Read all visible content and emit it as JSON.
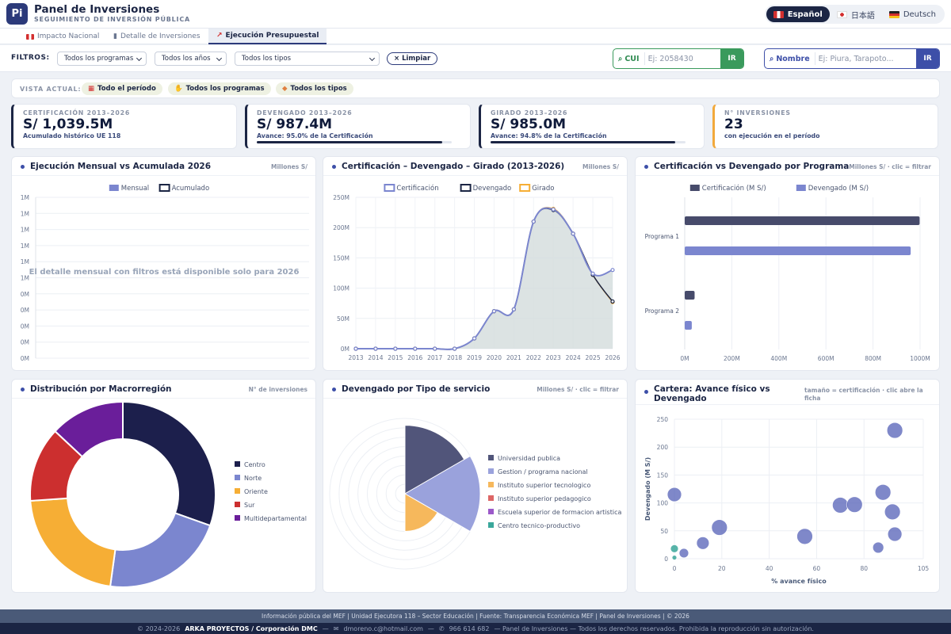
{
  "app": {
    "logo": "Pi",
    "title": "Panel de Inversiones",
    "subtitle": "SEGUIMIENTO DE INVERSIÓN PÚBLICA"
  },
  "languages": [
    {
      "label": "Español",
      "flag": "peru-flag-icon",
      "active": true
    },
    {
      "label": "日本語",
      "flag": "japan-flag-icon",
      "active": false
    },
    {
      "label": "Deutsch",
      "flag": "germany-flag-icon",
      "active": false
    }
  ],
  "tabs": [
    {
      "label": "Impacto Nacional",
      "icon": "peru-flag-icon",
      "active": false
    },
    {
      "label": "Detalle de Inversiones",
      "icon": "bar-chart-icon",
      "active": false
    },
    {
      "label": "Ejecución Presupuestal",
      "icon": "trend-chart-icon",
      "active": true
    }
  ],
  "filters": {
    "label": "FILTROS:",
    "programs": "Todos los programas",
    "years": "Todos los años",
    "types": "Todos los tipos",
    "clear": "× Limpiar"
  },
  "search_cui": {
    "label": "CUI",
    "placeholder": "Ej: 2058430",
    "button": "IR"
  },
  "search_name": {
    "label": "Nombre",
    "placeholder": "Ej: Piura, Tarapoto...",
    "button": "IR"
  },
  "current_view": {
    "label": "VISTA ACTUAL:",
    "chips": [
      "Todo el período",
      "Todos los programas",
      "Todos los tipos"
    ]
  },
  "kpis": [
    {
      "label": "CERTIFICACIÓN 2013–2026",
      "value": "S/ 1,039.5M",
      "sub": "Acumulado histórico UE 118",
      "progress": null
    },
    {
      "label": "DEVENGADO 2013–2026",
      "value": "S/ 987.4M",
      "sub": "Avance: 95.0% de la Certificación",
      "progress": 0.95
    },
    {
      "label": "GIRADO 2013–2026",
      "value": "S/ 985.0M",
      "sub": "Avance: 94.8% de la Certificación",
      "progress": 0.948
    },
    {
      "label": "N° INVERSIONES",
      "value": "23",
      "sub": "con ejecución en el período",
      "progress": null
    }
  ],
  "cards": {
    "monthly": {
      "title": "Ejecución Mensual vs Acumulada 2026",
      "note": "Millones S/",
      "message": "El detalle mensual con filtros está disponible solo para 2026"
    },
    "cert_dev": {
      "title": "Certificación – Devengado – Girado (2013-2026)",
      "note": "Millones S/"
    },
    "program": {
      "title": "Certificación vs Devengado por Programa",
      "note": "Millones S/ · clic = filtrar"
    },
    "region": {
      "title": "Distribución por Macrorregión",
      "note": "N° de inversiones"
    },
    "service": {
      "title": "Devengado por Tipo de servicio",
      "note": "Millones S/ · clic = filtrar"
    },
    "portfolio": {
      "title": "Cartera: Avance físico vs Devengado",
      "note": "tamaño = certificación · clic abre la ficha"
    }
  },
  "colors": {
    "navy": "#1b2544",
    "indigo": "#7b86cf",
    "dark_slate": "#474b6b",
    "amber": "#f6ae35",
    "green": "#3a9a5c"
  },
  "chart_data": [
    {
      "type": "bar",
      "title": "Ejecución Mensual vs Acumulada 2026",
      "legend": [
        "Mensual",
        "Acumulado"
      ],
      "legend_position": "top",
      "y_ticks": [
        "1M",
        "1M",
        "1M",
        "1M",
        "1M",
        "1M",
        "0M",
        "0M",
        "0M",
        "0M",
        "0M"
      ],
      "grid": true
    },
    {
      "type": "line",
      "title": "Certificación – Devengado – Girado (2013-2026)",
      "legend": [
        "Certificación",
        "Devengado",
        "Girado"
      ],
      "legend_position": "top",
      "x": [
        2013,
        2014,
        2015,
        2016,
        2017,
        2018,
        2019,
        2020,
        2021,
        2022,
        2023,
        2024,
        2025,
        2026
      ],
      "y_ticks": [
        "0M",
        "50M",
        "100M",
        "150M",
        "200M",
        "250M"
      ],
      "ylim": [
        0,
        250
      ],
      "series": [
        {
          "name": "Certificación",
          "values": [
            0,
            0,
            0,
            0,
            0,
            0,
            17,
            62,
            65,
            210,
            230,
            190,
            124,
            130
          ]
        },
        {
          "name": "Devengado",
          "values": [
            0,
            0,
            0,
            0,
            0,
            0,
            17,
            62,
            65,
            210,
            229,
            190,
            122,
            78
          ]
        },
        {
          "name": "Girado",
          "values": [
            0,
            0,
            0,
            0,
            0,
            0,
            17,
            62,
            65,
            210,
            231,
            190,
            122,
            77
          ]
        }
      ],
      "grid": true
    },
    {
      "type": "bar",
      "orientation": "horizontal",
      "title": "Certificación vs Devengado por Programa",
      "legend": [
        "Certificación (M S/)",
        "Devengado (M S/)"
      ],
      "legend_position": "top",
      "categories": [
        "Programa 1",
        "Programa 2"
      ],
      "x_ticks": [
        "0M",
        "200M",
        "400M",
        "600M",
        "800M",
        "1000M"
      ],
      "xlim": [
        0,
        1000
      ],
      "series": [
        {
          "name": "Certificación (M S/)",
          "values": [
            998,
            42
          ]
        },
        {
          "name": "Devengado (M S/)",
          "values": [
            960,
            30
          ]
        }
      ]
    },
    {
      "type": "pie",
      "style": "donut",
      "title": "Distribución por Macrorregión",
      "legend_position": "right",
      "labels": [
        "Centro",
        "Norte",
        "Oriente",
        "Sur",
        "Multidepartamental"
      ],
      "values": [
        7,
        5,
        5,
        3,
        3
      ],
      "colors": [
        "#1c1f4c",
        "#7b86cf",
        "#f6ae35",
        "#cc2f2f",
        "#6a1e9a"
      ]
    },
    {
      "type": "pie",
      "style": "polar-area",
      "title": "Devengado por Tipo de servicio",
      "legend_position": "right",
      "labels": [
        "Universidad publica",
        "Gestion / programa nacional",
        "Instituto superior tecnologico",
        "Instituto superior pedagogico",
        "Escuela superior de formacion artistica",
        "Centro tecnico-productivo"
      ],
      "values": [
        100,
        110,
        55,
        0,
        0,
        0
      ],
      "colors": [
        "#51557a",
        "#9aa2dc",
        "#f6b85c",
        "#dd6666",
        "#9b59c9",
        "#3aa79b"
      ]
    },
    {
      "type": "scatter",
      "title": "Cartera: Avance físico vs Devengado",
      "xlabel": "% avance físico",
      "ylabel": "Devengado (M S/)",
      "xlim": [
        0,
        105
      ],
      "ylim": [
        0,
        250
      ],
      "x_ticks": [
        0,
        20,
        40,
        60,
        80,
        105
      ],
      "y_ticks": [
        0,
        50,
        100,
        150,
        200,
        250
      ],
      "points": [
        {
          "x": 0,
          "y": 115,
          "size": 9
        },
        {
          "x": 0,
          "y": 18,
          "size": 5
        },
        {
          "x": 0,
          "y": 2,
          "size": 3
        },
        {
          "x": 4,
          "y": 10,
          "size": 6
        },
        {
          "x": 12,
          "y": 28,
          "size": 8
        },
        {
          "x": 19,
          "y": 56,
          "size": 10
        },
        {
          "x": 55,
          "y": 40,
          "size": 10
        },
        {
          "x": 70,
          "y": 96,
          "size": 10
        },
        {
          "x": 76,
          "y": 97,
          "size": 10
        },
        {
          "x": 86,
          "y": 20,
          "size": 7
        },
        {
          "x": 88,
          "y": 119,
          "size": 10
        },
        {
          "x": 92,
          "y": 84,
          "size": 10
        },
        {
          "x": 93,
          "y": 44,
          "size": 9
        },
        {
          "x": 93,
          "y": 230,
          "size": 10
        }
      ],
      "grid": true
    }
  ],
  "footer": {
    "line1": "Información pública del MEF  |  Unidad Ejecutora 118 – Sector Educación  |  Fuente: Transparencia Económica MEF  |  Panel de Inversiones  |  © 2026",
    "copyright": "© 2024-2026",
    "company": "ARKA PROYECTOS / Corporación DMC",
    "email": "dmoreno.c@hotmail.com",
    "phone": "966 614 682",
    "tail": "—   Panel de Inversiones   —   Todos los derechos reservados. Prohibida la reproducción sin autorización."
  }
}
